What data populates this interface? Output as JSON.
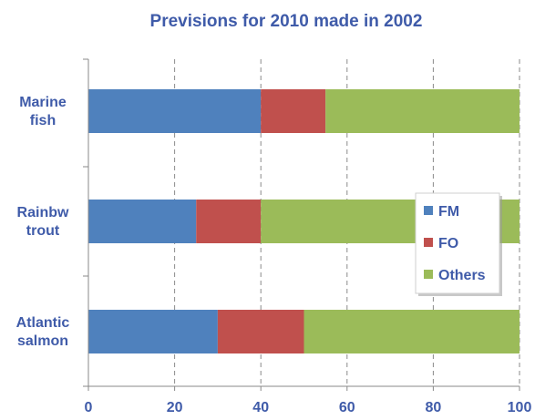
{
  "chart_data": {
    "type": "bar",
    "orientation": "horizontal",
    "stacked": true,
    "title": "Previsions for 2010 made in 2002",
    "xlabel": "",
    "ylabel": "",
    "xlim": [
      0,
      100
    ],
    "xticks": [
      0,
      20,
      40,
      60,
      80,
      100
    ],
    "grid": "vertical-dashed",
    "legend_position": "right-middle",
    "categories": [
      [
        "Marine",
        "fish"
      ],
      [
        "Rainbw",
        "trout"
      ],
      [
        "Atlantic",
        "salmon"
      ]
    ],
    "series": [
      {
        "name": "FM",
        "color": "#4F81BD",
        "values": [
          40,
          25,
          30
        ]
      },
      {
        "name": "FO",
        "color": "#C0504D",
        "values": [
          15,
          15,
          20
        ]
      },
      {
        "name": "Others",
        "color": "#9BBB59",
        "values": [
          45,
          60,
          50
        ]
      }
    ]
  }
}
